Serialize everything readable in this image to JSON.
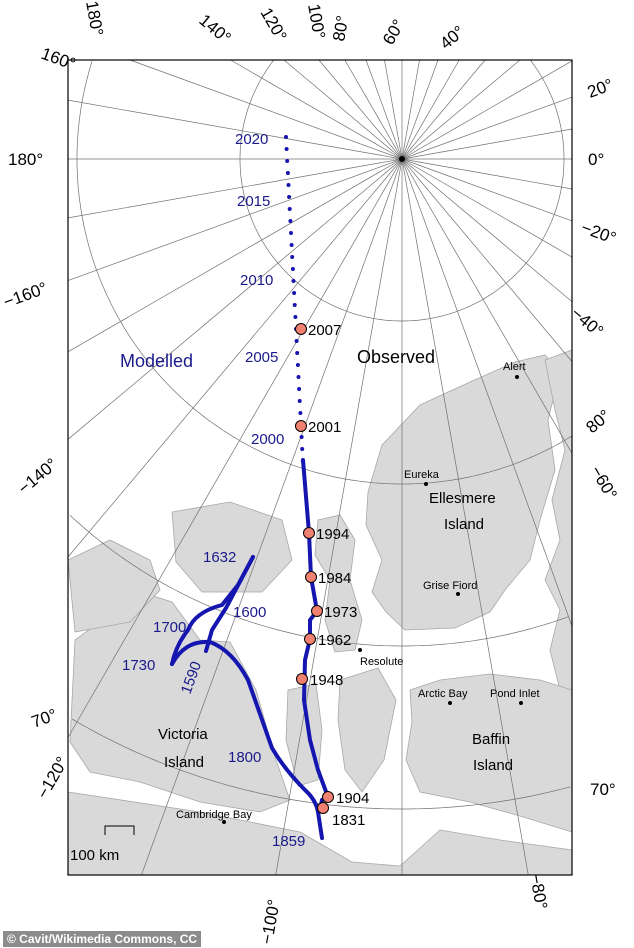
{
  "map": {
    "longitude_labels": [
      "180°",
      "160°",
      "140°",
      "120°",
      "100°",
      "80°",
      "60°",
      "40°",
      "20°",
      "0°",
      "−20°",
      "−40°",
      "−60°",
      "−80°",
      "−100°",
      "−120°",
      "−140°",
      "−160°",
      "180°"
    ],
    "latitude_labels": [
      "80°",
      "70°",
      "70°"
    ],
    "region_labels": {
      "modelled": "Modelled",
      "observed": "Observed"
    },
    "islands": [
      "Ellesmere",
      "Island",
      "Baffin",
      "Island",
      "Victoria",
      "Island"
    ],
    "cities": [
      "Alert",
      "Eureka",
      "Grise Fiord",
      "Resolute",
      "Arctic Bay",
      "Pond Inlet",
      "Cambridge Bay"
    ],
    "scale_bar": "100 km",
    "modelled_years": [
      "2020",
      "2015",
      "2010",
      "2005",
      "2000",
      "1632",
      "1600",
      "1700",
      "1730",
      "1590",
      "1800",
      "1859"
    ],
    "observed_years": [
      "2007",
      "2001",
      "1994",
      "1984",
      "1973",
      "1962",
      "1948",
      "1904",
      "1831"
    ],
    "colors": {
      "path": "#1515b0",
      "model_label": "#1a1a8c",
      "observation_marker": "#f08070",
      "land": "#d9d9d9"
    }
  },
  "credit": "© Cavit/Wikimedia Commons, CC"
}
